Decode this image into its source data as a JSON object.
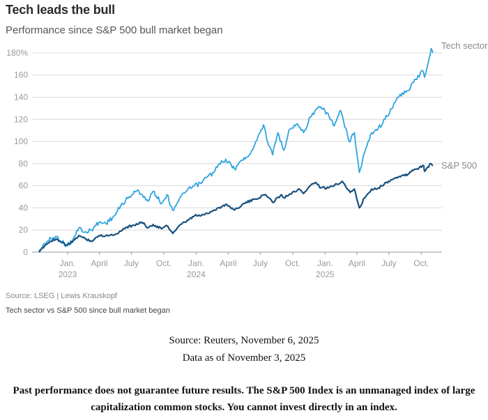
{
  "header": {
    "title": "Tech leads the bull",
    "subtitle": "Performance since S&P 500 bull market began"
  },
  "footer": {
    "source": "Source: LSEG | Lewis Krauskopf",
    "chart_caption": "Tech sector vs S&P 500 since bull market began",
    "attribution_line1": "Source: Reuters, November 6, 2025",
    "attribution_line2": "Data as of November 3, 2025",
    "disclaimer": "Past performance does not guarantee future results. The S&P 500 Index is an unmanaged index of large capitalization common stocks. You cannot invest directly in an index."
  },
  "colors": {
    "tech": "#2ea3df",
    "sp500": "#17507f",
    "grid": "#d8d8d8"
  },
  "chart_data": {
    "type": "line",
    "title": "Tech leads the bull",
    "subtitle": "Performance since S&P 500 bull market began",
    "y_unit": "%",
    "ylim": [
      0,
      185
    ],
    "y_ticks": [
      {
        "value": 0,
        "label": "0"
      },
      {
        "value": 20,
        "label": "20"
      },
      {
        "value": 40,
        "label": "40"
      },
      {
        "value": 60,
        "label": "60"
      },
      {
        "value": 80,
        "label": "80"
      },
      {
        "value": 100,
        "label": "100"
      },
      {
        "value": 120,
        "label": "120"
      },
      {
        "value": 140,
        "label": "140"
      },
      {
        "value": 160,
        "label": "160"
      },
      {
        "value": 180,
        "label": "180%"
      }
    ],
    "xlim": [
      "2022-10-12",
      "2025-11-03"
    ],
    "x_ticks": [
      {
        "date": "2023-01-01",
        "label": "Jan.",
        "year": "2023"
      },
      {
        "date": "2023-04-01",
        "label": "April",
        "year": ""
      },
      {
        "date": "2023-07-01",
        "label": "July",
        "year": ""
      },
      {
        "date": "2023-10-01",
        "label": "Oct.",
        "year": ""
      },
      {
        "date": "2024-01-01",
        "label": "Jan.",
        "year": "2024"
      },
      {
        "date": "2024-04-01",
        "label": "April",
        "year": ""
      },
      {
        "date": "2024-07-01",
        "label": "July",
        "year": ""
      },
      {
        "date": "2024-10-01",
        "label": "Oct.",
        "year": ""
      },
      {
        "date": "2025-01-01",
        "label": "Jan.",
        "year": "2025"
      },
      {
        "date": "2025-04-01",
        "label": "April",
        "year": ""
      },
      {
        "date": "2025-07-01",
        "label": "July",
        "year": ""
      },
      {
        "date": "2025-10-01",
        "label": "Oct.",
        "year": ""
      }
    ],
    "grid": true,
    "series": [
      {
        "name": "Tech sector",
        "color": "#2ea3df",
        "points": [
          [
            "2022-10-12",
            0
          ],
          [
            "2022-10-28",
            8
          ],
          [
            "2022-11-15",
            12
          ],
          [
            "2022-12-01",
            14
          ],
          [
            "2022-12-28",
            6
          ],
          [
            "2023-01-15",
            10
          ],
          [
            "2023-02-02",
            22
          ],
          [
            "2023-02-20",
            18
          ],
          [
            "2023-03-10",
            20
          ],
          [
            "2023-03-31",
            27
          ],
          [
            "2023-04-20",
            26
          ],
          [
            "2023-05-15",
            33
          ],
          [
            "2023-06-01",
            42
          ],
          [
            "2023-06-15",
            47
          ],
          [
            "2023-07-03",
            52
          ],
          [
            "2023-07-18",
            56
          ],
          [
            "2023-08-01",
            52
          ],
          [
            "2023-08-18",
            46
          ],
          [
            "2023-09-01",
            55
          ],
          [
            "2023-09-25",
            44
          ],
          [
            "2023-10-10",
            52
          ],
          [
            "2023-10-26",
            38
          ],
          [
            "2023-11-14",
            48
          ],
          [
            "2023-12-01",
            54
          ],
          [
            "2023-12-27",
            60
          ],
          [
            "2024-01-15",
            62
          ],
          [
            "2024-02-01",
            68
          ],
          [
            "2024-02-20",
            72
          ],
          [
            "2024-03-07",
            80
          ],
          [
            "2024-03-25",
            84
          ],
          [
            "2024-04-19",
            75
          ],
          [
            "2024-05-10",
            83
          ],
          [
            "2024-05-31",
            88
          ],
          [
            "2024-06-18",
            100
          ],
          [
            "2024-07-10",
            115
          ],
          [
            "2024-07-25",
            96
          ],
          [
            "2024-08-05",
            88
          ],
          [
            "2024-08-20",
            108
          ],
          [
            "2024-09-06",
            92
          ],
          [
            "2024-09-20",
            110
          ],
          [
            "2024-10-15",
            116
          ],
          [
            "2024-11-01",
            108
          ],
          [
            "2024-11-20",
            122
          ],
          [
            "2024-12-16",
            131
          ],
          [
            "2025-01-06",
            126
          ],
          [
            "2025-01-27",
            114
          ],
          [
            "2025-02-14",
            128
          ],
          [
            "2025-03-10",
            100
          ],
          [
            "2025-03-25",
            108
          ],
          [
            "2025-04-08",
            72
          ],
          [
            "2025-04-23",
            90
          ],
          [
            "2025-05-13",
            108
          ],
          [
            "2025-06-01",
            112
          ],
          [
            "2025-06-20",
            120
          ],
          [
            "2025-07-15",
            134
          ],
          [
            "2025-08-08",
            144
          ],
          [
            "2025-08-25",
            146
          ],
          [
            "2025-09-15",
            156
          ],
          [
            "2025-10-05",
            164
          ],
          [
            "2025-10-10",
            158
          ],
          [
            "2025-10-20",
            170
          ],
          [
            "2025-10-29",
            184
          ],
          [
            "2025-11-03",
            180
          ]
        ]
      },
      {
        "name": "S&P 500",
        "color": "#17507f",
        "points": [
          [
            "2022-10-12",
            0
          ],
          [
            "2022-10-28",
            6
          ],
          [
            "2022-11-15",
            10
          ],
          [
            "2022-12-01",
            12
          ],
          [
            "2022-12-28",
            6
          ],
          [
            "2023-01-15",
            9
          ],
          [
            "2023-02-02",
            15
          ],
          [
            "2023-02-20",
            12
          ],
          [
            "2023-03-13",
            10
          ],
          [
            "2023-03-31",
            15
          ],
          [
            "2023-04-20",
            15
          ],
          [
            "2023-05-15",
            16
          ],
          [
            "2023-06-01",
            19
          ],
          [
            "2023-06-15",
            22
          ],
          [
            "2023-07-03",
            24
          ],
          [
            "2023-07-31",
            27
          ],
          [
            "2023-08-18",
            22
          ],
          [
            "2023-09-01",
            25
          ],
          [
            "2023-09-25",
            21
          ],
          [
            "2023-10-10",
            24
          ],
          [
            "2023-10-27",
            17
          ],
          [
            "2023-11-14",
            24
          ],
          [
            "2023-12-01",
            27
          ],
          [
            "2023-12-28",
            33
          ],
          [
            "2024-01-15",
            33
          ],
          [
            "2024-02-01",
            35
          ],
          [
            "2024-02-20",
            38
          ],
          [
            "2024-03-28",
            43
          ],
          [
            "2024-04-19",
            38
          ],
          [
            "2024-05-15",
            44
          ],
          [
            "2024-06-18",
            48
          ],
          [
            "2024-07-16",
            52
          ],
          [
            "2024-08-05",
            45
          ],
          [
            "2024-08-30",
            52
          ],
          [
            "2024-09-06",
            49
          ],
          [
            "2024-09-30",
            54
          ],
          [
            "2024-10-20",
            57
          ],
          [
            "2024-11-01",
            53
          ],
          [
            "2024-11-20",
            60
          ],
          [
            "2024-12-06",
            63
          ],
          [
            "2024-12-20",
            58
          ],
          [
            "2025-01-10",
            58
          ],
          [
            "2025-02-19",
            64
          ],
          [
            "2025-03-13",
            54
          ],
          [
            "2025-03-25",
            57
          ],
          [
            "2025-04-08",
            40
          ],
          [
            "2025-04-23",
            49
          ],
          [
            "2025-05-13",
            57
          ],
          [
            "2025-06-01",
            58
          ],
          [
            "2025-06-30",
            64
          ],
          [
            "2025-07-28",
            68
          ],
          [
            "2025-08-15",
            69
          ],
          [
            "2025-09-15",
            75
          ],
          [
            "2025-10-08",
            78
          ],
          [
            "2025-10-10",
            73
          ],
          [
            "2025-10-28",
            80
          ],
          [
            "2025-11-03",
            78
          ]
        ]
      }
    ]
  }
}
